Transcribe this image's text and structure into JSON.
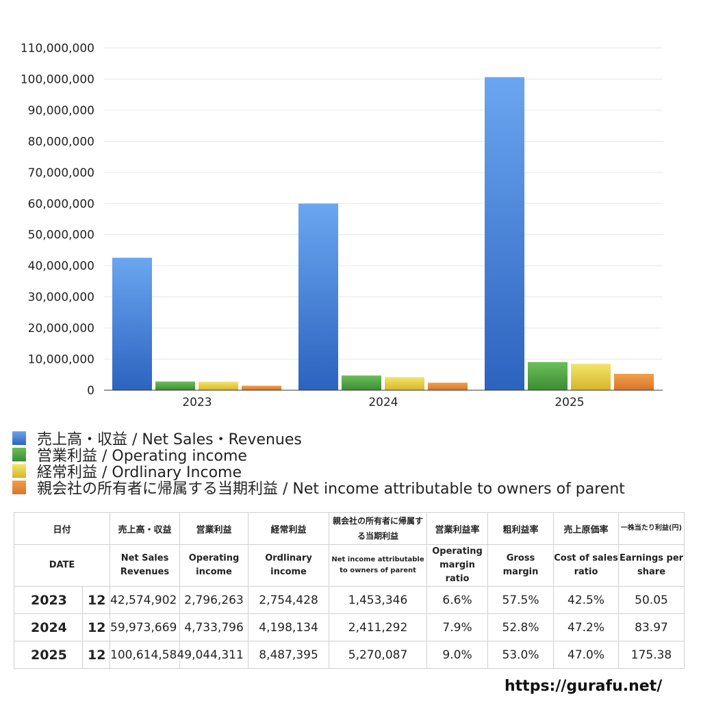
{
  "chart_data": {
    "type": "bar",
    "categories": [
      "2023",
      "2024",
      "2025"
    ],
    "ylim": [
      0,
      110000000
    ],
    "yticks": [
      0,
      10000000,
      20000000,
      30000000,
      40000000,
      50000000,
      60000000,
      70000000,
      80000000,
      90000000,
      100000000,
      110000000
    ],
    "ytick_labels": [
      "0",
      "10,000,000",
      "20,000,000",
      "30,000,000",
      "40,000,000",
      "50,000,000",
      "60,000,000",
      "70,000,000",
      "80,000,000",
      "90,000,000",
      "100,000,000",
      "110,000,000"
    ],
    "grid": true,
    "legend_position": "bottom",
    "series": [
      {
        "name": "売上高・収益 / Net Sales・Revenues",
        "values": [
          42574902,
          59973669,
          100614584
        ],
        "color_top": "#6aa6f0",
        "color_bottom": "#2c63bf"
      },
      {
        "name": "営業利益 / Operating income",
        "values": [
          2796263,
          4733796,
          9044311
        ],
        "color_top": "#6bbf5a",
        "color_bottom": "#3c8c33"
      },
      {
        "name": "経常利益 / Ordlinary Income",
        "values": [
          2754428,
          4198134,
          8487395
        ],
        "color_top": "#f2e56a",
        "color_bottom": "#d6b52a"
      },
      {
        "name": "親会社の所有者に帰属する当期利益 / Net income attributable to owners of parent",
        "values": [
          1453346,
          2411292,
          5270087
        ],
        "color_top": "#f0a04a",
        "color_bottom": "#d9742a"
      }
    ]
  },
  "table": {
    "header_jp": [
      "日付",
      "売上高・収益",
      "営業利益",
      "経常利益",
      "親会社の所有者に帰属する当期利益",
      "営業利益率",
      "粗利益率",
      "売上原価率",
      "一株当たり利益(円)"
    ],
    "header_en": [
      "DATE",
      "Net Sales Revenues",
      "Operating income",
      "Ordlinary income",
      "Net income attributable to owners of parent",
      "Operating margin ratio",
      "Gross margin",
      "Cost of sales ratio",
      "Earnings per share"
    ],
    "rows": [
      {
        "year": "2023",
        "month": "12",
        "sales": "42,574,902",
        "op": "2,796,263",
        "ord": "2,754,428",
        "net": "1,453,346",
        "op_ratio": "6.6%",
        "gross": "57.5%",
        "cost": "42.5%",
        "eps": "50.05"
      },
      {
        "year": "2024",
        "month": "12",
        "sales": "59,973,669",
        "op": "4,733,796",
        "ord": "4,198,134",
        "net": "2,411,292",
        "op_ratio": "7.9%",
        "gross": "52.8%",
        "cost": "47.2%",
        "eps": "83.97"
      },
      {
        "year": "2025",
        "month": "12",
        "sales": "100,614,584",
        "op": "9,044,311",
        "ord": "8,487,395",
        "net": "5,270,087",
        "op_ratio": "9.0%",
        "gross": "53.0%",
        "cost": "47.0%",
        "eps": "175.38"
      }
    ]
  },
  "footer": {
    "url": "https://gurafu.net/"
  }
}
